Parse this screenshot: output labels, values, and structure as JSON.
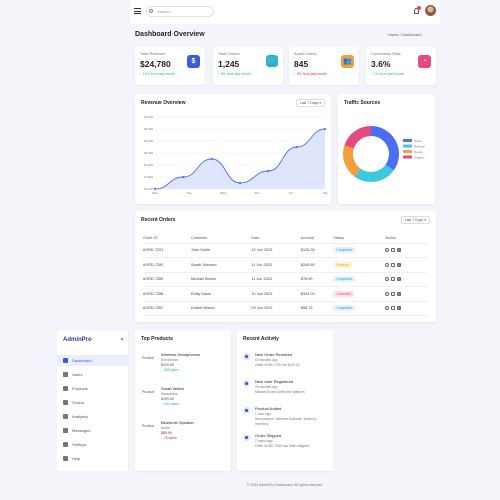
{
  "header": {
    "search_placeholder": "Search..."
  },
  "page": {
    "title": "Dashboard Overview",
    "breadcrumb": "Home  /  Dashboard"
  },
  "stats": [
    {
      "label": "Total Revenue",
      "value": "$24,780",
      "change": "↑ 12% from last month",
      "icon": "$",
      "icon_name": "dollar-icon",
      "color": "#3b5bdb",
      "change_color": "#22b5a3"
    },
    {
      "label": "Total Orders",
      "value": "1,245",
      "change": "↑ 8% from last month",
      "icon": "🛒",
      "icon_name": "cart-icon",
      "color": "#22b8cf",
      "change_color": "#22b5a3"
    },
    {
      "label": "Active Users",
      "value": "845",
      "change": "↓ 3% from last month",
      "icon": "👥",
      "icon_name": "users-icon",
      "color": "#f59f3a",
      "change_color": "#e03131"
    },
    {
      "label": "Conversion Rate",
      "value": "3.6%",
      "change": "↑ 1% from last month",
      "icon": "◔",
      "icon_name": "pie-icon",
      "color": "#e64980",
      "change_color": "#22b5a3"
    }
  ],
  "revenue": {
    "title": "Revenue Overview",
    "range": "Last 7 Days ▾"
  },
  "traffic": {
    "title": "Traffic Sources"
  },
  "orders": {
    "title": "Recent Orders",
    "range": "Last 7 Days ▾",
    "columns": [
      "Order ID",
      "Customer",
      "Date",
      "Amount",
      "Status",
      "Action"
    ],
    "rows": [
      {
        "id": "#ORD-7291",
        "customer": "John Smith",
        "date": "12 Jun 2023",
        "amount": "$125.00",
        "status": "Completed"
      },
      {
        "id": "#ORD-7290",
        "customer": "Sarah Johnson",
        "date": "11 Jun 2023",
        "amount": "$245.50",
        "status": "Pending"
      },
      {
        "id": "#ORD-7289",
        "customer": "Michael Brown",
        "date": "11 Jun 2023",
        "amount": "$78.99",
        "status": "Completed"
      },
      {
        "id": "#ORD-7288",
        "customer": "Emily Davis",
        "date": "10 Jun 2023",
        "amount": "$342.00",
        "status": "Cancelled"
      },
      {
        "id": "#ORD-7287",
        "customer": "Robert Wilson",
        "date": "09 Jun 2023",
        "amount": "$56.75",
        "status": "Completed"
      }
    ],
    "status_colors": {
      "Completed": {
        "bg": "#e3f4ff",
        "fg": "#2f8fd8"
      },
      "Pending": {
        "bg": "#fff3d6",
        "fg": "#e8a21a"
      },
      "Cancelled": {
        "bg": "#ffe0ec",
        "fg": "#e64980"
      }
    }
  },
  "sidebar": {
    "brand": "AdminPro",
    "close": "✕",
    "items": [
      {
        "label": "Dashboard",
        "icon": "home-icon"
      },
      {
        "label": "Users",
        "icon": "user-icon"
      },
      {
        "label": "Products",
        "icon": "box-icon"
      },
      {
        "label": "Orders",
        "icon": "cart-icon"
      },
      {
        "label": "Analytics",
        "icon": "chart-icon"
      },
      {
        "label": "Messages",
        "icon": "mail-icon"
      },
      {
        "label": "Settings",
        "icon": "gear-icon"
      },
      {
        "label": "Help",
        "icon": "help-icon"
      }
    ]
  },
  "top_products": {
    "title": "Top Products",
    "items": [
      {
        "alt": "Product",
        "name": "Wireless Headphones",
        "category": "Electronics",
        "price": "$129.99",
        "sales": "↑ 245 sales",
        "sales_color": "#22b5a3"
      },
      {
        "alt": "Product",
        "name": "Smart Watch",
        "category": "Wearables",
        "price": "$199.99",
        "sales": "↑ 182 sales",
        "sales_color": "#22b5a3"
      },
      {
        "alt": "Product",
        "name": "Bluetooth Speaker",
        "category": "Audio",
        "price": "$89.99",
        "sales": "↓ 78 sales",
        "sales_color": "#e03131"
      }
    ]
  },
  "activity": {
    "title": "Recent Activity",
    "items": [
      {
        "title": "New Order Received",
        "time": "10 minutes ago",
        "desc": "Order #ORD-7291 for $125.00"
      },
      {
        "title": "New User Registered",
        "time": "25 minutes ago",
        "desc": "Michael Brown joined the platform"
      },
      {
        "title": "Product Added",
        "time": "1 hour ago",
        "desc": "New product \"Wireless Earbuds\" added to inventory"
      },
      {
        "title": "Order Shipped",
        "time": "2 hours ago",
        "desc": "Order #ORD-7289 has been shipped"
      }
    ]
  },
  "footer": "© 2023 AdminPro Dashboard. All rights reserved.",
  "chart_data": [
    {
      "type": "area",
      "title": "Revenue Overview",
      "categories": [
        "Mon",
        "Tue",
        "Wed",
        "Thu",
        "Fri",
        "Sat"
      ],
      "x": [
        "Mon",
        "Tue",
        "Wed",
        "Thu",
        "Fri",
        "Sat",
        "Sun"
      ],
      "values": [
        12000,
        14000,
        17000,
        13000,
        15000,
        19000,
        22000
      ],
      "yticks": [
        "12,000",
        "14,000",
        "16,000",
        "18,000",
        "20,000",
        "22,000",
        "24,000"
      ],
      "ylim": [
        12000,
        24000
      ],
      "color": "#4c6ef5",
      "grid": true
    },
    {
      "type": "pie",
      "title": "Traffic Sources",
      "labels": [
        "Direct",
        "Referral",
        "Social",
        "Organic"
      ],
      "values": [
        35,
        25,
        20,
        20
      ],
      "colors": [
        "#4c6ef5",
        "#3bc9db",
        "#f59f3a",
        "#e64980"
      ],
      "legend": "right"
    }
  ]
}
